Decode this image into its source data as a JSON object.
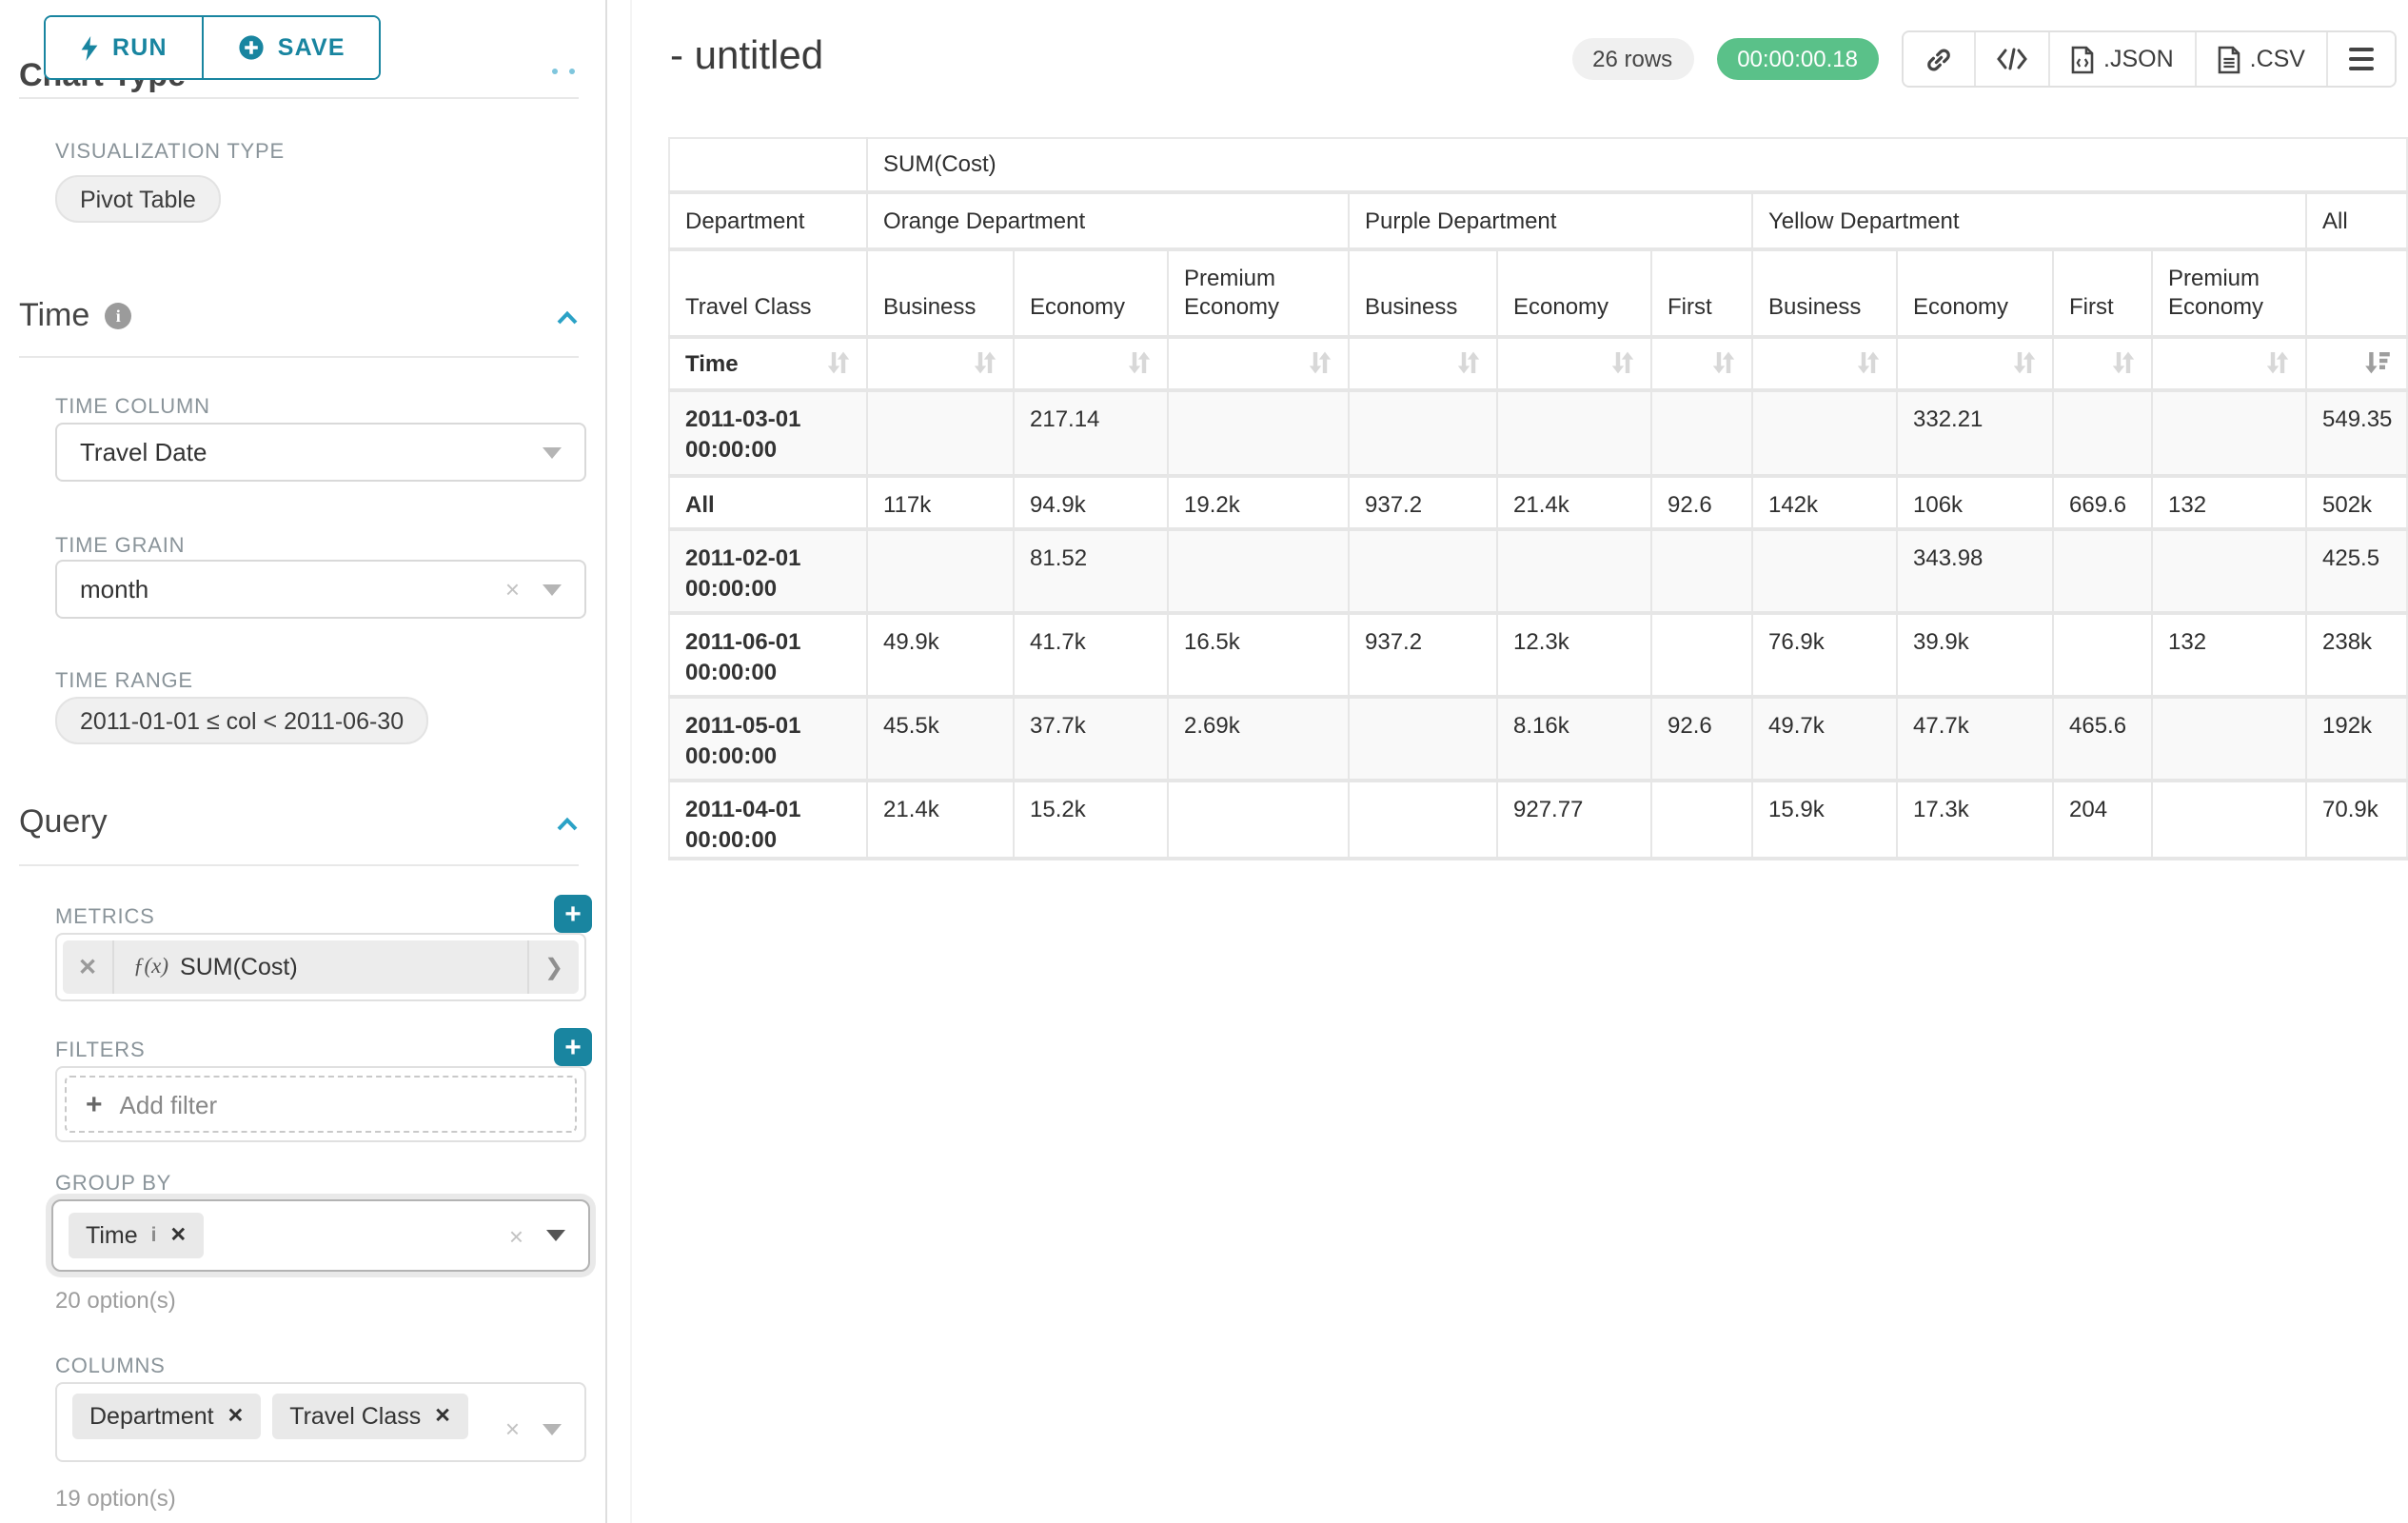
{
  "colors": {
    "accent": "#1985a0",
    "success": "#5ac189",
    "chevron": "#2ba2c6"
  },
  "sidebar": {
    "run_label": "RUN",
    "save_label": "SAVE",
    "scrolled_heading": "Chart Type",
    "visualization_type_label": "VISUALIZATION TYPE",
    "visualization_type_value": "Pivot Table",
    "time_section": {
      "title": "Time",
      "time_column_label": "TIME COLUMN",
      "time_column_value": "Travel Date",
      "time_grain_label": "TIME GRAIN",
      "time_grain_value": "month",
      "time_range_label": "TIME RANGE",
      "time_range_value": "2011-01-01 ≤ col < 2011-06-30"
    },
    "query_section": {
      "title": "Query",
      "metrics_label": "METRICS",
      "metric_fx": "ƒ(x)",
      "metric_value": "SUM(Cost)",
      "metric_arrow": "❯",
      "filters_label": "FILTERS",
      "add_filter_label": "Add filter",
      "group_by_label": "GROUP BY",
      "group_by_tags": [
        {
          "label": "Time",
          "info": true
        }
      ],
      "group_by_hint": "20 option(s)",
      "columns_label": "COLUMNS",
      "columns_tags": [
        {
          "label": "Department",
          "info": false
        },
        {
          "label": "Travel Class",
          "info": false
        }
      ],
      "columns_hint": "19 option(s)"
    }
  },
  "header": {
    "title": "- untitled",
    "row_count": "26 rows",
    "timer": "00:00:00.18",
    "export_json_label": ".JSON",
    "export_csv_label": ".CSV"
  },
  "pivot_table": {
    "metric_header": "SUM(Cost)",
    "corner_row2": "Department",
    "corner_row3": "Travel Class",
    "corner_sort": "Time",
    "groups": [
      {
        "label": "Orange Department",
        "cols": [
          "Business",
          "Economy",
          "Premium Economy"
        ]
      },
      {
        "label": "Purple Department",
        "cols": [
          "Business",
          "Economy",
          "First"
        ]
      },
      {
        "label": "Yellow Department",
        "cols": [
          "Business",
          "Economy",
          "First",
          "Premium Economy"
        ]
      },
      {
        "label": "All",
        "cols": [
          ""
        ]
      }
    ],
    "rows": [
      {
        "label": "2011-03-01 00:00:00",
        "values": [
          "",
          "217.14",
          "",
          "",
          "",
          "",
          "",
          "332.21",
          "",
          "",
          "549.35"
        ]
      },
      {
        "label": "All",
        "values": [
          "117k",
          "94.9k",
          "19.2k",
          "937.2",
          "21.4k",
          "92.6",
          "142k",
          "106k",
          "669.6",
          "132",
          "502k"
        ]
      },
      {
        "label": "2011-02-01 00:00:00",
        "values": [
          "",
          "81.52",
          "",
          "",
          "",
          "",
          "",
          "343.98",
          "",
          "",
          "425.5"
        ]
      },
      {
        "label": "2011-06-01 00:00:00",
        "values": [
          "49.9k",
          "41.7k",
          "16.5k",
          "937.2",
          "12.3k",
          "",
          "76.9k",
          "39.9k",
          "",
          "132",
          "238k"
        ]
      },
      {
        "label": "2011-05-01 00:00:00",
        "values": [
          "45.5k",
          "37.7k",
          "2.69k",
          "",
          "8.16k",
          "92.6",
          "49.7k",
          "47.7k",
          "465.6",
          "",
          "192k"
        ]
      },
      {
        "label": "2011-04-01 00:00:00",
        "values": [
          "21.4k",
          "15.2k",
          "",
          "",
          "927.77",
          "",
          "15.9k",
          "17.3k",
          "204",
          "",
          "70.9k"
        ]
      }
    ]
  }
}
